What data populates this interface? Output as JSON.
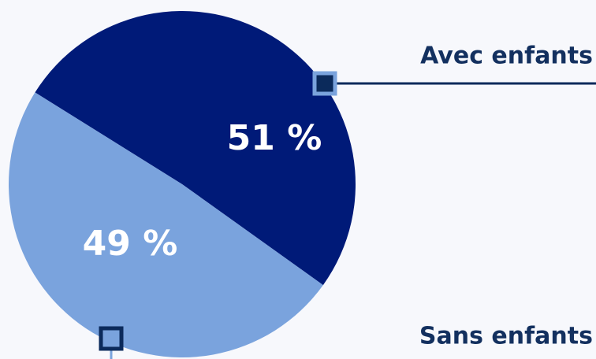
{
  "chart_data": {
    "type": "pie",
    "categories": [
      "Avec enfants",
      "Sans enfants"
    ],
    "values": [
      51,
      49
    ],
    "value_labels": [
      "51 %",
      "49 %"
    ],
    "colors": [
      "#001a78",
      "#7aa3dd"
    ]
  }
}
